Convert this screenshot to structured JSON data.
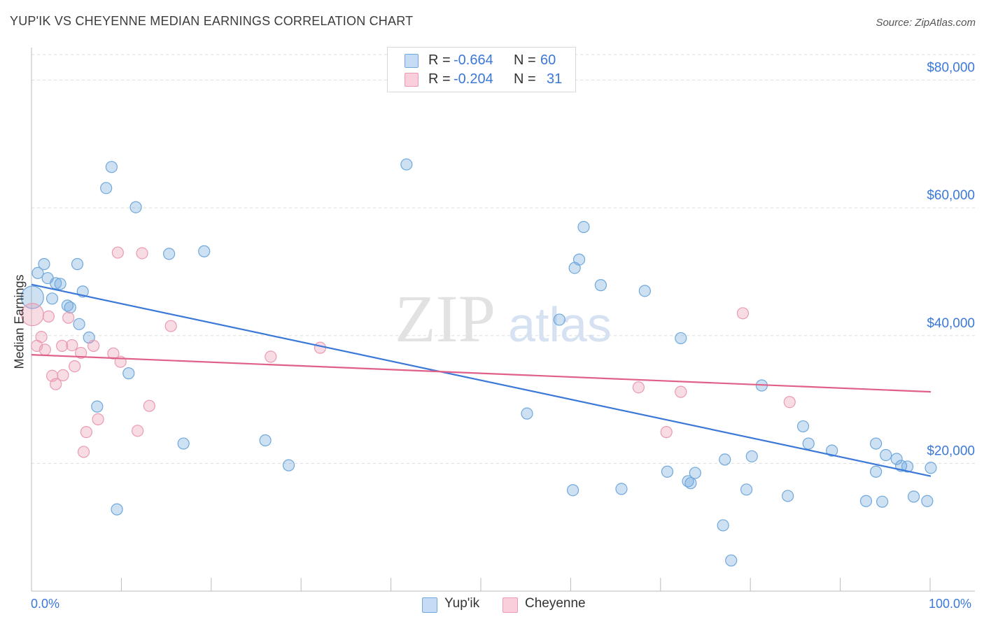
{
  "title": "YUP'IK VS CHEYENNE MEDIAN EARNINGS CORRELATION CHART",
  "source": "Source: ZipAtlas.com",
  "watermark": {
    "zip": "ZIP",
    "atlas": "atlas"
  },
  "legend": {
    "r_label": "R =",
    "n_label": "N =",
    "rows": [
      {
        "r": "-0.664",
        "n": "60",
        "color": "#6fa8dc"
      },
      {
        "r": "-0.204",
        "n": "31",
        "color": "#ea9ab2"
      }
    ]
  },
  "bottom_legend": [
    "Yup'ik",
    "Cheyenne"
  ],
  "x_axis": {
    "min_label": "0.0%",
    "max_label": "100.0%"
  },
  "chart_data": {
    "type": "scatter",
    "title": "YUP'IK VS CHEYENNE MEDIAN EARNINGS CORRELATION CHART",
    "xlabel": "",
    "ylabel": "Median Earnings",
    "xlim": [
      0,
      100
    ],
    "ylim": [
      0,
      84000
    ],
    "y_ticks": [
      {
        "value": 20000,
        "label": "$20,000"
      },
      {
        "value": 40000,
        "label": "$40,000"
      },
      {
        "value": 60000,
        "label": "$60,000"
      },
      {
        "value": 80000,
        "label": "$80,000"
      }
    ],
    "series": [
      {
        "name": "Yup'ik",
        "color": "#6fa8dc",
        "stroke": "#3b78d8",
        "r": -0.664,
        "n": 60,
        "trend": {
          "x": [
            0,
            100
          ],
          "y": [
            48000,
            18000
          ]
        },
        "points": [
          {
            "x": 0.1,
            "y": 46000,
            "s": "big"
          },
          {
            "x": 0.7,
            "y": 49800
          },
          {
            "x": 1.4,
            "y": 51200
          },
          {
            "x": 1.8,
            "y": 49000
          },
          {
            "x": 2.3,
            "y": 45800
          },
          {
            "x": 2.7,
            "y": 48200
          },
          {
            "x": 3.2,
            "y": 48100
          },
          {
            "x": 4.0,
            "y": 44700
          },
          {
            "x": 4.3,
            "y": 44400
          },
          {
            "x": 5.1,
            "y": 51200
          },
          {
            "x": 5.3,
            "y": 41800
          },
          {
            "x": 5.7,
            "y": 46900
          },
          {
            "x": 6.4,
            "y": 39700
          },
          {
            "x": 7.3,
            "y": 28900
          },
          {
            "x": 8.3,
            "y": 63100
          },
          {
            "x": 8.9,
            "y": 66400
          },
          {
            "x": 9.5,
            "y": 12800
          },
          {
            "x": 10.8,
            "y": 34100
          },
          {
            "x": 11.6,
            "y": 60100
          },
          {
            "x": 15.3,
            "y": 52800
          },
          {
            "x": 16.9,
            "y": 23100
          },
          {
            "x": 19.2,
            "y": 53200
          },
          {
            "x": 26.0,
            "y": 23600
          },
          {
            "x": 28.6,
            "y": 19700
          },
          {
            "x": 41.7,
            "y": 66800
          },
          {
            "x": 55.1,
            "y": 27800
          },
          {
            "x": 60.2,
            "y": 15800
          },
          {
            "x": 58.7,
            "y": 42500
          },
          {
            "x": 60.4,
            "y": 50600
          },
          {
            "x": 60.9,
            "y": 51900
          },
          {
            "x": 61.4,
            "y": 57000
          },
          {
            "x": 63.3,
            "y": 47900
          },
          {
            "x": 65.6,
            "y": 16000
          },
          {
            "x": 68.2,
            "y": 47000
          },
          {
            "x": 70.7,
            "y": 18700
          },
          {
            "x": 72.2,
            "y": 39600
          },
          {
            "x": 73.0,
            "y": 17200
          },
          {
            "x": 73.3,
            "y": 16900
          },
          {
            "x": 73.8,
            "y": 18500
          },
          {
            "x": 76.9,
            "y": 10300
          },
          {
            "x": 77.1,
            "y": 20600
          },
          {
            "x": 77.8,
            "y": 4800
          },
          {
            "x": 79.5,
            "y": 15900
          },
          {
            "x": 80.1,
            "y": 21100
          },
          {
            "x": 81.2,
            "y": 32200
          },
          {
            "x": 84.1,
            "y": 14900
          },
          {
            "x": 85.8,
            "y": 25800
          },
          {
            "x": 86.4,
            "y": 23100
          },
          {
            "x": 89.0,
            "y": 22000
          },
          {
            "x": 92.8,
            "y": 14100
          },
          {
            "x": 93.9,
            "y": 23100
          },
          {
            "x": 93.9,
            "y": 18700
          },
          {
            "x": 94.6,
            "y": 14000
          },
          {
            "x": 95.0,
            "y": 21300
          },
          {
            "x": 96.2,
            "y": 20700
          },
          {
            "x": 96.7,
            "y": 19600
          },
          {
            "x": 97.4,
            "y": 19500
          },
          {
            "x": 98.1,
            "y": 14800
          },
          {
            "x": 99.6,
            "y": 14100
          },
          {
            "x": 100.0,
            "y": 19300
          }
        ]
      },
      {
        "name": "Cheyenne",
        "color": "#ea9ab2",
        "stroke": "#e06088",
        "r": -0.204,
        "n": 31,
        "trend": {
          "x": [
            0,
            100
          ],
          "y": [
            37000,
            31200
          ]
        },
        "points": [
          {
            "x": 0.1,
            "y": 43300,
            "s": "big"
          },
          {
            "x": 0.6,
            "y": 38400
          },
          {
            "x": 1.1,
            "y": 39800
          },
          {
            "x": 1.5,
            "y": 37800
          },
          {
            "x": 1.9,
            "y": 43000
          },
          {
            "x": 2.3,
            "y": 33700
          },
          {
            "x": 2.7,
            "y": 32400
          },
          {
            "x": 3.4,
            "y": 38400
          },
          {
            "x": 3.5,
            "y": 33800
          },
          {
            "x": 4.1,
            "y": 42800
          },
          {
            "x": 4.5,
            "y": 38500
          },
          {
            "x": 4.8,
            "y": 35200
          },
          {
            "x": 5.5,
            "y": 37300
          },
          {
            "x": 5.8,
            "y": 21800
          },
          {
            "x": 6.1,
            "y": 24900
          },
          {
            "x": 6.9,
            "y": 38400
          },
          {
            "x": 7.4,
            "y": 26900
          },
          {
            "x": 9.1,
            "y": 37200
          },
          {
            "x": 9.6,
            "y": 53000
          },
          {
            "x": 9.9,
            "y": 35900
          },
          {
            "x": 11.8,
            "y": 25100
          },
          {
            "x": 12.3,
            "y": 52900
          },
          {
            "x": 13.1,
            "y": 29000
          },
          {
            "x": 15.5,
            "y": 41500
          },
          {
            "x": 26.6,
            "y": 36700
          },
          {
            "x": 32.1,
            "y": 38100
          },
          {
            "x": 67.5,
            "y": 31900
          },
          {
            "x": 70.6,
            "y": 24900
          },
          {
            "x": 72.2,
            "y": 31200
          },
          {
            "x": 79.1,
            "y": 43500
          },
          {
            "x": 84.3,
            "y": 29600
          }
        ]
      }
    ]
  }
}
